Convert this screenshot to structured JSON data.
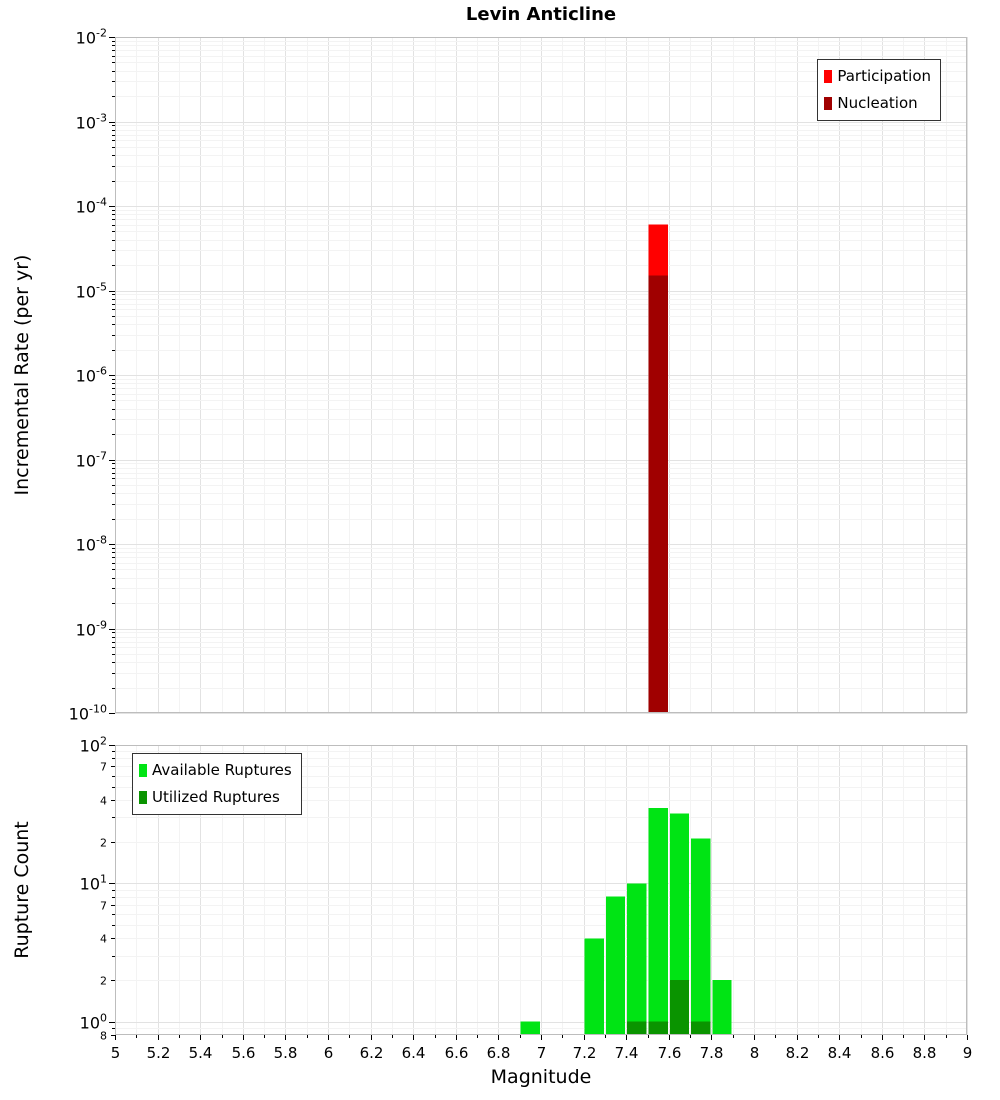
{
  "chart_data": [
    {
      "type": "bar",
      "title": "Levin Anticline",
      "ylabel": "Incremental Rate (per yr)",
      "y_scale": "log",
      "y_range": [
        1e-10,
        0.01
      ],
      "x_range": [
        5,
        9
      ],
      "bin_width": 0.1,
      "grid": true,
      "legend_position": "top-right",
      "y_ticks": [
        {
          "value": 0.01,
          "base": "10",
          "exp": "-2"
        },
        {
          "value": 0.001,
          "base": "10",
          "exp": "-3"
        },
        {
          "value": 0.0001,
          "base": "10",
          "exp": "-4"
        },
        {
          "value": 1e-05,
          "base": "10",
          "exp": "-5"
        },
        {
          "value": 1e-06,
          "base": "10",
          "exp": "-6"
        },
        {
          "value": 1e-07,
          "base": "10",
          "exp": "-7"
        },
        {
          "value": 1e-08,
          "base": "10",
          "exp": "-8"
        },
        {
          "value": 1e-09,
          "base": "10",
          "exp": "-9"
        },
        {
          "value": 1e-10,
          "base": "10",
          "exp": "-10"
        }
      ],
      "series": [
        {
          "name": "Participation",
          "color": "#ff0000",
          "points": [
            {
              "x": 7.55,
              "y": 6e-05
            }
          ]
        },
        {
          "name": "Nucleation",
          "color": "#a00000",
          "points": [
            {
              "x": 7.55,
              "y": 1.5e-05
            }
          ]
        }
      ]
    },
    {
      "type": "bar",
      "ylabel": "Rupture Count",
      "xlabel": "Magnitude",
      "y_scale": "log",
      "y_range": [
        0.8,
        100
      ],
      "x_range": [
        5,
        9
      ],
      "bin_width": 0.1,
      "grid": true,
      "legend_position": "top-left",
      "y_ticks": [
        {
          "value": 100,
          "base": "10",
          "exp": "2"
        },
        {
          "value": 70,
          "minor": "7"
        },
        {
          "value": 40,
          "minor": "4"
        },
        {
          "value": 20,
          "minor": "2"
        },
        {
          "value": 10,
          "base": "10",
          "exp": "1"
        },
        {
          "value": 7,
          "minor": "7"
        },
        {
          "value": 4,
          "minor": "4"
        },
        {
          "value": 2,
          "minor": "2"
        },
        {
          "value": 1,
          "base": "10",
          "exp": "0"
        },
        {
          "value": 0.8,
          "minor": "8"
        }
      ],
      "x_ticks": [
        {
          "value": 5,
          "label": "5"
        },
        {
          "value": 5.2,
          "label": "5.2"
        },
        {
          "value": 5.4,
          "label": "5.4"
        },
        {
          "value": 5.6,
          "label": "5.6"
        },
        {
          "value": 5.8,
          "label": "5.8"
        },
        {
          "value": 6,
          "label": "6"
        },
        {
          "value": 6.2,
          "label": "6.2"
        },
        {
          "value": 6.4,
          "label": "6.4"
        },
        {
          "value": 6.6,
          "label": "6.6"
        },
        {
          "value": 6.8,
          "label": "6.8"
        },
        {
          "value": 7,
          "label": "7"
        },
        {
          "value": 7.2,
          "label": "7.2"
        },
        {
          "value": 7.4,
          "label": "7.4"
        },
        {
          "value": 7.6,
          "label": "7.6"
        },
        {
          "value": 7.8,
          "label": "7.8"
        },
        {
          "value": 8,
          "label": "8"
        },
        {
          "value": 8.2,
          "label": "8.2"
        },
        {
          "value": 8.4,
          "label": "8.4"
        },
        {
          "value": 8.6,
          "label": "8.6"
        },
        {
          "value": 8.8,
          "label": "8.8"
        },
        {
          "value": 9,
          "label": "9"
        }
      ],
      "series": [
        {
          "name": "Available Ruptures",
          "color": "#00e414",
          "points": [
            {
              "x": 6.95,
              "y": 1
            },
            {
              "x": 7.25,
              "y": 4
            },
            {
              "x": 7.35,
              "y": 8
            },
            {
              "x": 7.45,
              "y": 10
            },
            {
              "x": 7.55,
              "y": 35
            },
            {
              "x": 7.65,
              "y": 32
            },
            {
              "x": 7.75,
              "y": 21
            },
            {
              "x": 7.85,
              "y": 2
            }
          ]
        },
        {
          "name": "Utilized Ruptures",
          "color": "#0a9400",
          "points": [
            {
              "x": 7.45,
              "y": 1
            },
            {
              "x": 7.55,
              "y": 1
            },
            {
              "x": 7.65,
              "y": 2
            },
            {
              "x": 7.75,
              "y": 1
            }
          ]
        }
      ]
    }
  ]
}
